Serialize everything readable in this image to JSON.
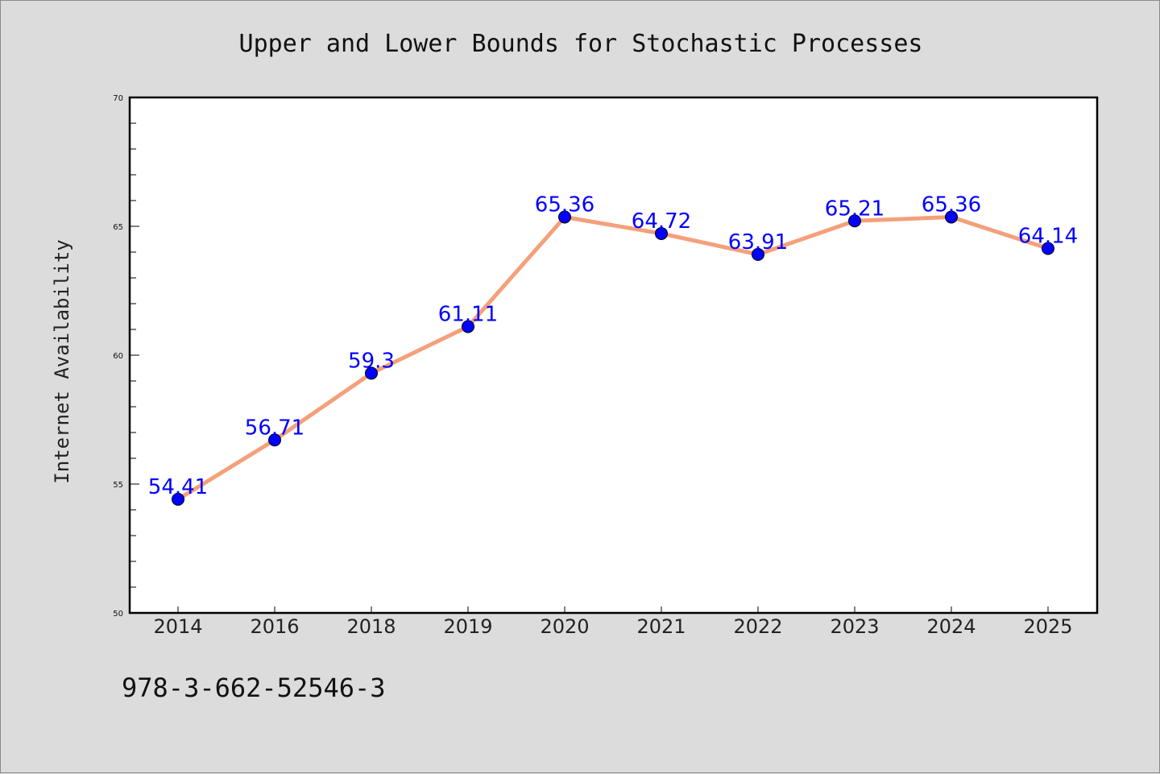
{
  "chart_data": {
    "type": "line",
    "title": "Upper and Lower Bounds for Stochastic Processes",
    "xlabel": "",
    "ylabel": "Internet Availability",
    "categories": [
      "2014",
      "2016",
      "2018",
      "2019",
      "2020",
      "2021",
      "2022",
      "2023",
      "2024",
      "2025"
    ],
    "series": [
      {
        "values": [
          54.41,
          56.71,
          59.3,
          61.11,
          65.36,
          64.72,
          63.91,
          65.21,
          65.36,
          64.14
        ],
        "data_labels": [
          "54.41",
          "56.71",
          "59.3",
          "61.11",
          "65.36",
          "64.72",
          "63.91",
          "65.21",
          "65.36",
          "64.14"
        ]
      }
    ],
    "ylim": [
      50,
      70
    ],
    "yticks": [
      50,
      55,
      60,
      65,
      70
    ],
    "ytick_labels": [
      "50",
      "55",
      "60",
      "65",
      "70"
    ],
    "grid": false,
    "colors": {
      "line": "#f4a07a",
      "marker": "#0000ff",
      "data_label": "#0000ff",
      "background": "#dcdcdc",
      "plot_background": "#ffffff"
    }
  },
  "footer": {
    "isbn": "978-3-662-52546-3"
  }
}
